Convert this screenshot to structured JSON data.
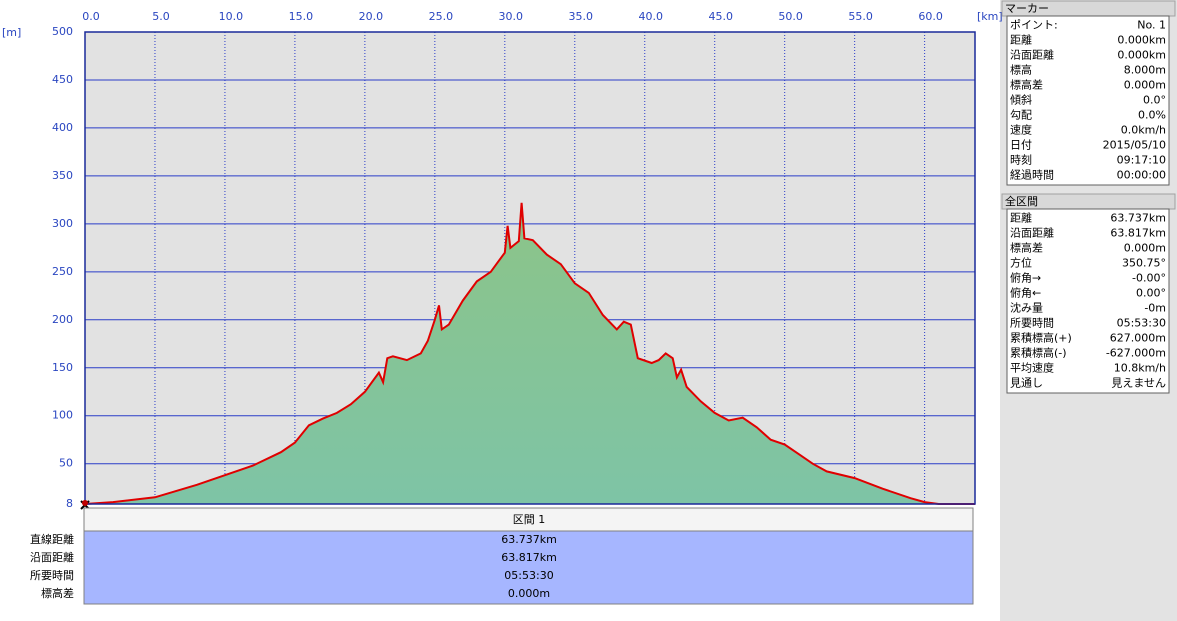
{
  "chart_data": {
    "type": "area",
    "x_unit": "[km]",
    "y_unit": "[m]",
    "x": [
      0,
      2,
      5,
      8,
      10,
      12,
      14,
      15,
      16,
      17,
      18,
      19,
      20,
      21,
      21.3,
      21.6,
      22,
      23,
      24,
      24.5,
      25,
      25.3,
      25.5,
      26,
      27,
      28,
      29,
      29.5,
      30,
      30.2,
      30.4,
      31,
      31.2,
      31.4,
      32,
      33,
      34,
      35,
      36,
      37,
      38,
      38.5,
      39,
      39.5,
      40.5,
      41,
      41.5,
      42,
      42.3,
      42.6,
      43,
      44,
      45,
      46,
      47,
      48,
      49,
      50,
      51,
      52,
      53,
      55,
      57,
      59,
      60,
      61,
      63.6
    ],
    "series": [
      {
        "values": [
          8,
          10,
          15,
          28,
          38,
          48,
          62,
          72,
          90,
          97,
          103,
          112,
          125,
          145,
          135,
          160,
          162,
          158,
          165,
          178,
          200,
          215,
          190,
          195,
          220,
          240,
          250,
          260,
          270,
          298,
          275,
          282,
          322,
          285,
          283,
          268,
          258,
          238,
          228,
          205,
          190,
          198,
          195,
          160,
          155,
          158,
          165,
          160,
          140,
          148,
          130,
          115,
          103,
          95,
          98,
          88,
          75,
          70,
          60,
          50,
          42,
          35,
          24,
          14,
          10,
          8,
          8
        ],
        "color": "#e00000",
        "fill": "#86c48e"
      }
    ],
    "xlim": [
      0,
      63.6
    ],
    "ylim": [
      8,
      500
    ],
    "xticks": [
      {
        "value": 0,
        "label": "0.0"
      },
      {
        "value": 5,
        "label": "5.0"
      },
      {
        "value": 10,
        "label": "10.0"
      },
      {
        "value": 15,
        "label": "15.0"
      },
      {
        "value": 20,
        "label": "20.0"
      },
      {
        "value": 25,
        "label": "25.0"
      },
      {
        "value": 30,
        "label": "30.0"
      },
      {
        "value": 35,
        "label": "35.0"
      },
      {
        "value": 40,
        "label": "40.0"
      },
      {
        "value": 45,
        "label": "45.0"
      },
      {
        "value": 50,
        "label": "50.0"
      },
      {
        "value": 55,
        "label": "55.0"
      },
      {
        "value": 60,
        "label": "60.0"
      }
    ],
    "yticks": [
      8,
      50,
      100,
      150,
      200,
      250,
      300,
      350,
      400,
      450,
      500
    ],
    "grid": true
  },
  "section_table": {
    "header": "区間 1",
    "rows": [
      [
        "直線距離",
        "63.737km"
      ],
      [
        "沿面距離",
        "63.817km"
      ],
      [
        "所要時間",
        "05:53:30"
      ],
      [
        "標高差",
        "0.000m"
      ]
    ]
  },
  "marker_panel": {
    "title": "マーカー",
    "rows": [
      [
        "ポイント:",
        "No. 1"
      ],
      [
        "距離",
        "0.000km"
      ],
      [
        "沿面距離",
        "0.000km"
      ],
      [
        "標高",
        "8.000m"
      ],
      [
        "標高差",
        "0.000m"
      ],
      [
        "傾斜",
        "0.0°"
      ],
      [
        "勾配",
        "0.0%"
      ],
      [
        "速度",
        "0.0km/h"
      ],
      [
        "日付",
        "2015/05/10"
      ],
      [
        "時刻",
        "09:17:10"
      ],
      [
        "経過時間",
        "00:00:00"
      ]
    ]
  },
  "total_panel": {
    "title": "全区間",
    "rows": [
      [
        "距離",
        "63.737km"
      ],
      [
        "沿面距離",
        "63.817km"
      ],
      [
        "標高差",
        "0.000m"
      ],
      [
        "方位",
        "350.75°"
      ],
      [
        "俯角→",
        "-0.00°"
      ],
      [
        "俯角←",
        "0.00°"
      ],
      [
        "沈み量",
        "-0m"
      ],
      [
        "所要時間",
        "05:53:30"
      ],
      [
        "累積標高(+)",
        "627.000m"
      ],
      [
        "累積標高(-)",
        "-627.000m"
      ],
      [
        "平均速度",
        "10.8km/h"
      ],
      [
        "見通し",
        "見えません"
      ]
    ]
  }
}
